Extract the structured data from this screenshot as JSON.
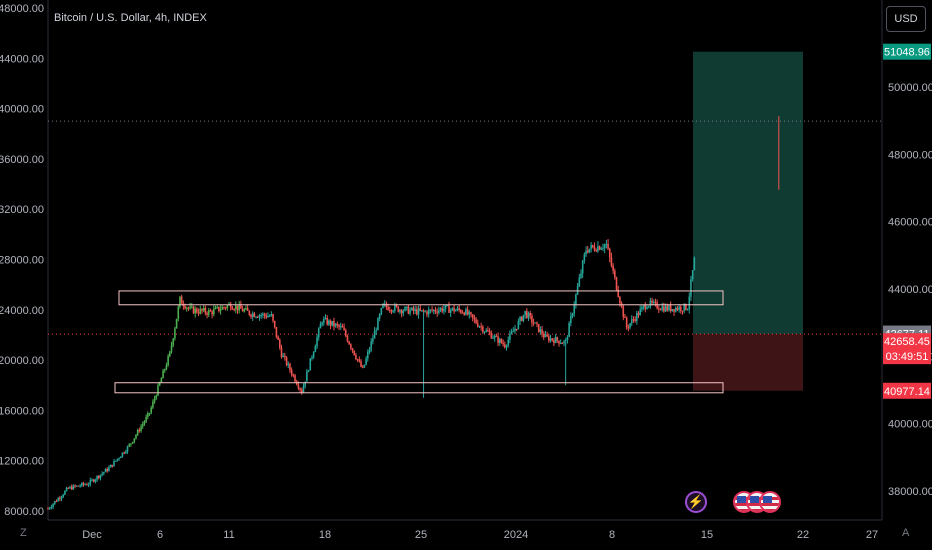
{
  "header": {
    "title": "Bitcoin / U.S. Dollar, 4h, INDEX",
    "currency_button": "USD",
    "left_corner_label": "Z",
    "right_corner_label": "A"
  },
  "left_axis": {
    "ticks": [
      "48000.00",
      "44000.00",
      "40000.00",
      "36000.00",
      "32000.00",
      "28000.00",
      "24000.00",
      "20000.00",
      "16000.00",
      "12000.00",
      "8000.00"
    ]
  },
  "right_axis": {
    "ticks": [
      "50000.00",
      "48000.00",
      "46000.00",
      "44000.00",
      "42000.00",
      "40000.00",
      "38000.00"
    ]
  },
  "x_axis": {
    "ticks": [
      "Dec",
      "6",
      "11",
      "18",
      "25",
      "2024",
      "8",
      "15",
      "22",
      "27"
    ]
  },
  "price_tags": {
    "target": {
      "text": "51048.96",
      "color": "#089981"
    },
    "last": {
      "text": "42677.11",
      "color": "#787b86"
    },
    "current": {
      "text": "42658.45",
      "color": "#f23645"
    },
    "countdown": {
      "text": "03:49:51",
      "color": "#f23645"
    },
    "stop": {
      "text": "40977.14",
      "color": "#f23645"
    }
  },
  "colors": {
    "up": "#26a69a",
    "up_bright": "#4caf50",
    "down": "#ef5350",
    "zone_border": "#f7c6c6",
    "profit_fill": "#0f3b33",
    "loss_fill": "#3f1416"
  },
  "events": [
    {
      "icon": "lightning-bolt-icon",
      "glyph": "⚡"
    },
    {
      "icon": "us-flag-icon"
    },
    {
      "icon": "us-flag-icon"
    },
    {
      "icon": "us-flag-icon"
    }
  ],
  "chart_data": {
    "type": "candlestick",
    "title": "Bitcoin / U.S. Dollar, 4h, INDEX",
    "left_axis_range": [
      8000,
      48000
    ],
    "right_axis_range": [
      37000,
      51500
    ],
    "grid": false,
    "x_range_days": [
      "2023-11-26",
      "2024-01-28"
    ],
    "price_path": [
      [
        0,
        8200
      ],
      [
        2,
        9800
      ],
      [
        4,
        10200
      ],
      [
        6,
        11400
      ],
      [
        8,
        13200
      ],
      [
        10,
        15800
      ],
      [
        12,
        20500
      ],
      [
        13,
        24800
      ],
      [
        14,
        24000
      ],
      [
        16,
        23800
      ],
      [
        18,
        24400
      ],
      [
        20,
        23700
      ],
      [
        22,
        23500
      ],
      [
        23,
        20500
      ],
      [
        25,
        17500
      ],
      [
        27,
        23200
      ],
      [
        29,
        22500
      ],
      [
        31,
        19200
      ],
      [
        33,
        24300
      ],
      [
        35,
        24000
      ],
      [
        37,
        23800
      ],
      [
        39,
        24100
      ],
      [
        41,
        23900
      ],
      [
        43,
        22400
      ],
      [
        45,
        21200
      ],
      [
        47,
        23800
      ],
      [
        49,
        21800
      ],
      [
        51,
        21400
      ],
      [
        53,
        28800
      ],
      [
        55,
        29200
      ],
      [
        57,
        22600
      ],
      [
        59,
        24500
      ],
      [
        61,
        24100
      ],
      [
        63,
        24200
      ],
      [
        65,
        35200
      ],
      [
        67,
        33000
      ],
      [
        69,
        31800
      ],
      [
        71,
        33500
      ],
      [
        73,
        33600
      ],
      [
        75,
        29000
      ],
      [
        76,
        25000
      ],
      [
        77,
        23500
      ],
      [
        78,
        22400
      ]
    ],
    "levels": {
      "dotted_high_left_scale": 39000,
      "current_price": 42658.45,
      "last_price": 42677.11,
      "target": 51048.96,
      "stop": 40977.14
    },
    "zones": [
      {
        "name": "resistance-zone",
        "left_scale_range": [
          24400,
          25500
        ]
      },
      {
        "name": "support-zone",
        "left_scale_range": [
          17400,
          18200
        ]
      }
    ],
    "position": {
      "type": "long",
      "entry": 42658.45,
      "target": 51048.96,
      "stop": 40977.14
    }
  }
}
